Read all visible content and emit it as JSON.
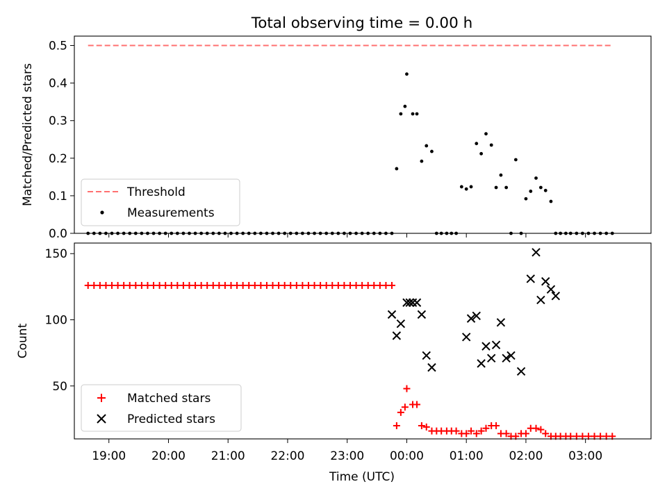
{
  "figure_title": "Total observing time = 0.00 h",
  "colors": {
    "threshold": "#ff7070",
    "measurements": "#000000",
    "matched": "#ff0000",
    "predicted": "#000000"
  },
  "chart_data": [
    {
      "type": "scatter",
      "ylabel": "Matched/Predicted stars",
      "ylim": [
        0,
        0.525
      ],
      "yticks": [
        0.0,
        0.1,
        0.2,
        0.3,
        0.4,
        0.5
      ],
      "ytick_labels": [
        "0.0",
        "0.1",
        "0.2",
        "0.3",
        "0.4",
        "0.5"
      ],
      "x_unit": "hours from 00:00 UTC (negative = previous day)",
      "xlim": [
        -5.58,
        4.1
      ],
      "grid": false,
      "legend_position": "lower-left",
      "threshold": {
        "name": "Threshold",
        "value": 0.5,
        "x_range": [
          -5.35,
          3.45
        ],
        "style": "dashed line"
      },
      "series": [
        {
          "name": "Measurements",
          "x": [
            -5.35,
            -5.25,
            -5.15,
            -5.05,
            -4.95,
            -4.85,
            -4.75,
            -4.65,
            -4.55,
            -4.45,
            -4.35,
            -4.25,
            -4.15,
            -4.05,
            -3.95,
            -3.85,
            -3.75,
            -3.65,
            -3.55,
            -3.45,
            -3.35,
            -3.25,
            -3.15,
            -3.05,
            -2.95,
            -2.85,
            -2.75,
            -2.65,
            -2.55,
            -2.45,
            -2.35,
            -2.25,
            -2.15,
            -2.05,
            -1.95,
            -1.85,
            -1.75,
            -1.65,
            -1.55,
            -1.45,
            -1.35,
            -1.25,
            -1.15,
            -1.05,
            -0.95,
            -0.85,
            -0.75,
            -0.65,
            -0.55,
            -0.45,
            -0.35,
            -0.25,
            -0.17,
            -0.1,
            -0.03,
            0.0,
            0.1,
            0.17,
            0.25,
            0.33,
            0.42,
            0.5,
            0.58,
            0.67,
            0.75,
            0.83,
            0.92,
            1.0,
            1.08,
            1.17,
            1.25,
            1.33,
            1.42,
            1.5,
            1.58,
            1.67,
            1.75,
            1.83,
            1.92,
            2.0,
            2.08,
            2.17,
            2.25,
            2.33,
            2.42,
            2.5,
            2.58,
            2.67,
            2.75,
            2.85,
            2.95,
            3.05,
            3.15,
            3.25,
            3.35,
            3.45
          ],
          "y": [
            0,
            0,
            0,
            0,
            0,
            0,
            0,
            0,
            0,
            0,
            0,
            0,
            0,
            0,
            0,
            0,
            0,
            0,
            0,
            0,
            0,
            0,
            0,
            0,
            0,
            0,
            0,
            0,
            0,
            0,
            0,
            0,
            0,
            0,
            0,
            0,
            0,
            0,
            0,
            0,
            0,
            0,
            0,
            0,
            0,
            0,
            0,
            0,
            0,
            0,
            0,
            0,
            0.172,
            0.318,
            0.338,
            0.424,
            0.318,
            0.318,
            0.192,
            0.233,
            0.218,
            0,
            0,
            0,
            0,
            0,
            0.124,
            0.118,
            0.124,
            0.239,
            0.212,
            0.265,
            0.235,
            0.122,
            0.155,
            0.122,
            0,
            0.196,
            0,
            0.092,
            0.112,
            0.147,
            0.122,
            0.114,
            0.085,
            0,
            0,
            0,
            0,
            0,
            0,
            0,
            0,
            0,
            0,
            0
          ]
        }
      ]
    },
    {
      "type": "scatter",
      "xlabel": "Time (UTC)",
      "ylabel": "Count",
      "ylim": [
        10,
        158
      ],
      "yticks": [
        50,
        100,
        150
      ],
      "ytick_labels": [
        "50",
        "100",
        "150"
      ],
      "x_unit": "hours from 00:00 UTC (negative = previous day)",
      "xlim": [
        -5.58,
        4.1
      ],
      "xticks": [
        -5,
        -4,
        -3,
        -2,
        -1,
        0,
        1,
        2,
        3
      ],
      "xtick_labels": [
        "19:00",
        "20:00",
        "21:00",
        "22:00",
        "23:00",
        "00:00",
        "01:00",
        "02:00",
        "03:00"
      ],
      "grid": false,
      "legend_position": "lower-left",
      "series": [
        {
          "name": "Matched stars",
          "x": [
            -5.35,
            -5.25,
            -5.15,
            -5.05,
            -4.95,
            -4.85,
            -4.75,
            -4.65,
            -4.55,
            -4.45,
            -4.35,
            -4.25,
            -4.15,
            -4.05,
            -3.95,
            -3.85,
            -3.75,
            -3.65,
            -3.55,
            -3.45,
            -3.35,
            -3.25,
            -3.15,
            -3.05,
            -2.95,
            -2.85,
            -2.75,
            -2.65,
            -2.55,
            -2.45,
            -2.35,
            -2.25,
            -2.15,
            -2.05,
            -1.95,
            -1.85,
            -1.75,
            -1.65,
            -1.55,
            -1.45,
            -1.35,
            -1.25,
            -1.15,
            -1.05,
            -0.95,
            -0.85,
            -0.75,
            -0.65,
            -0.55,
            -0.45,
            -0.35,
            -0.25,
            -0.25,
            -0.17,
            -0.1,
            -0.03,
            0.0,
            0.1,
            0.17,
            0.25,
            0.33,
            0.42,
            0.5,
            0.58,
            0.67,
            0.75,
            0.83,
            0.92,
            1.0,
            1.08,
            1.17,
            1.25,
            1.33,
            1.42,
            1.5,
            1.58,
            1.67,
            1.75,
            1.83,
            1.92,
            2.0,
            2.08,
            2.17,
            2.25,
            2.33,
            2.42,
            2.5,
            2.58,
            2.67,
            2.75,
            2.85,
            2.95,
            3.05,
            3.15,
            3.25,
            3.35,
            3.45
          ],
          "y": [
            126,
            126,
            126,
            126,
            126,
            126,
            126,
            126,
            126,
            126,
            126,
            126,
            126,
            126,
            126,
            126,
            126,
            126,
            126,
            126,
            126,
            126,
            126,
            126,
            126,
            126,
            126,
            126,
            126,
            126,
            126,
            126,
            126,
            126,
            126,
            126,
            126,
            126,
            126,
            126,
            126,
            126,
            126,
            126,
            126,
            126,
            126,
            126,
            126,
            126,
            126,
            126,
            126,
            20,
            30,
            34,
            48,
            36,
            36,
            20,
            19,
            16,
            16,
            16,
            16,
            16,
            16,
            14,
            14,
            16,
            14,
            16,
            18,
            20,
            20,
            14,
            14,
            12,
            12,
            14,
            14,
            18,
            18,
            17,
            14,
            12,
            12,
            12,
            12,
            12,
            12,
            12,
            12,
            12,
            12,
            12,
            12
          ]
        },
        {
          "name": "Predicted stars",
          "x": [
            -0.25,
            -0.17,
            -0.1,
            0.0,
            0.05,
            0.1,
            0.17,
            0.25,
            0.33,
            0.42,
            1.0,
            1.08,
            1.17,
            1.25,
            1.33,
            1.42,
            1.5,
            1.58,
            1.67,
            1.75,
            1.92,
            2.08,
            2.17,
            2.25,
            2.33,
            2.42,
            2.5
          ],
          "y": [
            104,
            88,
            97,
            113,
            113,
            113,
            113,
            104,
            73,
            64,
            87,
            101,
            103,
            67,
            80,
            71,
            81,
            98,
            71,
            73,
            61,
            131,
            151,
            115,
            129,
            123,
            118
          ]
        }
      ],
      "legend": [
        "Matched stars",
        "Predicted stars"
      ]
    }
  ]
}
